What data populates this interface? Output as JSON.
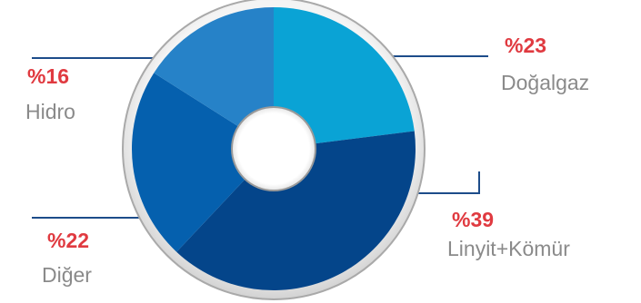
{
  "chart_data": {
    "type": "pie",
    "style": "donut",
    "slices": [
      {
        "label": "Doğalgaz",
        "percent_label": "%23",
        "value": 23,
        "color": "#0aa3d5"
      },
      {
        "label": "Linyit+Kömür",
        "percent_label": "%39",
        "value": 39,
        "color": "#04458a"
      },
      {
        "label": "Diğer",
        "percent_label": "%22",
        "value": 22,
        "color": "#0560ae"
      },
      {
        "label": "Hidro",
        "percent_label": "%16",
        "value": 16,
        "color": "#2682c8"
      }
    ],
    "colors": {
      "percent_text": "#e03a40",
      "name_text": "#8a8a8a",
      "leader_line": "#1d4c8a",
      "rim": "#b4b4b4"
    }
  }
}
